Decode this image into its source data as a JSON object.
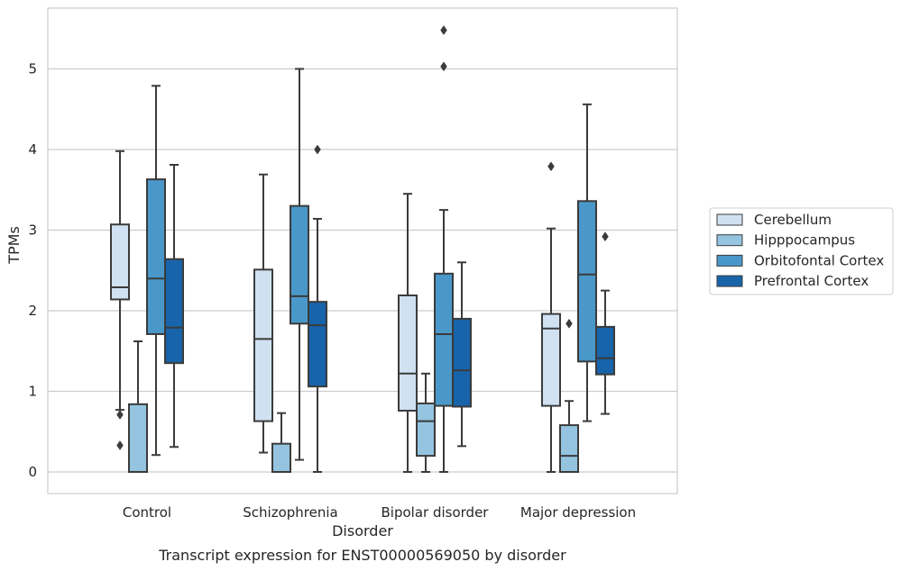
{
  "caption": "Transcript expression for ENST00000569050 by disorder",
  "chart_data": {
    "type": "box",
    "title": "",
    "xlabel": "Disorder",
    "ylabel": "TPMs",
    "ylim": [
      -0.27,
      5.75
    ],
    "yticks": [
      "0",
      "1",
      "2",
      "3",
      "4",
      "5"
    ],
    "grid": "horizontal",
    "legend_position": "right",
    "categories": [
      "Control",
      "Schizophrenia",
      "Bipolar disorder",
      "Major depression"
    ],
    "series": [
      {
        "name": "Cerebellum",
        "color": "#d0e1f2",
        "boxes": [
          {
            "whisker_low": 0.77,
            "q1": 2.14,
            "median": 2.29,
            "q3": 3.07,
            "whisker_high": 3.98,
            "outliers": [
              0.71,
              0.33
            ]
          },
          {
            "whisker_low": 0.24,
            "q1": 0.63,
            "median": 1.65,
            "q3": 2.51,
            "whisker_high": 3.69,
            "outliers": []
          },
          {
            "whisker_low": 0.0,
            "q1": 0.76,
            "median": 1.22,
            "q3": 2.19,
            "whisker_high": 3.45,
            "outliers": []
          },
          {
            "whisker_low": 0.0,
            "q1": 0.82,
            "median": 1.78,
            "q3": 1.96,
            "whisker_high": 3.02,
            "outliers": [
              3.79
            ]
          }
        ]
      },
      {
        "name": "Hipppocampus",
        "color": "#94c4df",
        "boxes": [
          {
            "whisker_low": 0.0,
            "q1": 0.0,
            "median": 0.0,
            "q3": 0.84,
            "whisker_high": 1.62,
            "outliers": []
          },
          {
            "whisker_low": 0.0,
            "q1": 0.0,
            "median": 0.0,
            "q3": 0.35,
            "whisker_high": 0.73,
            "outliers": []
          },
          {
            "whisker_low": 0.0,
            "q1": 0.2,
            "median": 0.63,
            "q3": 0.85,
            "whisker_high": 1.22,
            "outliers": []
          },
          {
            "whisker_low": 0.0,
            "q1": 0.0,
            "median": 0.2,
            "q3": 0.58,
            "whisker_high": 0.88,
            "outliers": [
              1.84
            ]
          }
        ]
      },
      {
        "name": "Orbitofontal Cortex",
        "color": "#4a98c9",
        "boxes": [
          {
            "whisker_low": 0.21,
            "q1": 1.71,
            "median": 2.4,
            "q3": 3.63,
            "whisker_high": 4.79,
            "outliers": []
          },
          {
            "whisker_low": 0.15,
            "q1": 1.84,
            "median": 2.18,
            "q3": 3.3,
            "whisker_high": 5.0,
            "outliers": []
          },
          {
            "whisker_low": 0.0,
            "q1": 0.82,
            "median": 1.71,
            "q3": 2.46,
            "whisker_high": 3.25,
            "outliers": [
              5.03,
              5.48
            ]
          },
          {
            "whisker_low": 0.63,
            "q1": 1.37,
            "median": 2.45,
            "q3": 3.36,
            "whisker_high": 4.56,
            "outliers": []
          }
        ]
      },
      {
        "name": "Prefrontal Cortex",
        "color": "#1764ab",
        "boxes": [
          {
            "whisker_low": 0.31,
            "q1": 1.35,
            "median": 1.79,
            "q3": 2.64,
            "whisker_high": 3.81,
            "outliers": []
          },
          {
            "whisker_low": 0.0,
            "q1": 1.06,
            "median": 1.82,
            "q3": 2.11,
            "whisker_high": 3.14,
            "outliers": [
              4.0
            ]
          },
          {
            "whisker_low": 0.32,
            "q1": 0.81,
            "median": 1.26,
            "q3": 1.9,
            "whisker_high": 2.6,
            "outliers": []
          },
          {
            "whisker_low": 0.72,
            "q1": 1.21,
            "median": 1.41,
            "q3": 1.8,
            "whisker_high": 2.25,
            "outliers": [
              2.92
            ]
          }
        ]
      }
    ]
  }
}
